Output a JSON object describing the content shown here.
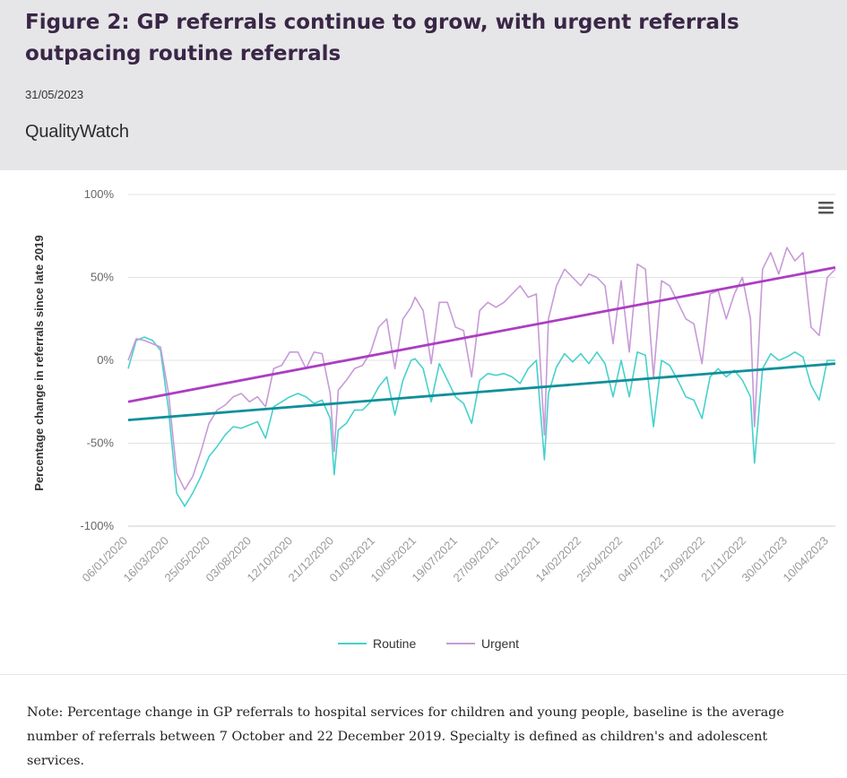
{
  "header": {
    "title": "Figure 2: GP referrals continue to grow, with urgent referrals outpacing routine referrals",
    "date": "31/05/2023",
    "brand": "QualityWatch"
  },
  "menu_icon": "hamburger-menu-icon",
  "colors": {
    "routine": "#47d1cc",
    "urgent": "#c79ad7",
    "routine_trend": "#0f8f9a",
    "urgent_trend": "#ab3ec2",
    "header_bg": "#e6e6e8"
  },
  "chart_data": {
    "type": "line",
    "ylabel": "Percentage change in referrals since late 2019",
    "ylim": [
      -100,
      100
    ],
    "yticks": [
      100,
      50,
      0,
      -50,
      -100
    ],
    "ytick_labels": [
      "100%",
      "50%",
      "0%",
      "-50%",
      "-100%"
    ],
    "x_tick_labels": [
      "06/01/2020",
      "16/03/2020",
      "25/05/2020",
      "03/08/2020",
      "12/10/2020",
      "21/12/2020",
      "01/03/2021",
      "10/05/2021",
      "19/07/2021",
      "27/09/2021",
      "06/12/2021",
      "14/02/2022",
      "25/04/2022",
      "04/07/2022",
      "12/09/2022",
      "21/11/2022",
      "30/01/2023",
      "10/04/2023"
    ],
    "x_start": "2020-01-06",
    "x_end": "2023-05-15",
    "grid": "horizontal",
    "legend_position": "bottom-center",
    "series": [
      {
        "name": "Routine",
        "values": [
          [
            "2020-01-06",
            -5
          ],
          [
            "2020-01-20",
            12
          ],
          [
            "2020-02-03",
            14
          ],
          [
            "2020-02-17",
            12
          ],
          [
            "2020-03-02",
            6
          ],
          [
            "2020-03-16",
            -30
          ],
          [
            "2020-03-30",
            -80
          ],
          [
            "2020-04-13",
            -88
          ],
          [
            "2020-04-27",
            -80
          ],
          [
            "2020-05-11",
            -70
          ],
          [
            "2020-05-25",
            -58
          ],
          [
            "2020-06-08",
            -52
          ],
          [
            "2020-06-22",
            -45
          ],
          [
            "2020-07-06",
            -40
          ],
          [
            "2020-07-20",
            -41
          ],
          [
            "2020-08-03",
            -39
          ],
          [
            "2020-08-17",
            -37
          ],
          [
            "2020-08-31",
            -47
          ],
          [
            "2020-09-14",
            -28
          ],
          [
            "2020-09-28",
            -25
          ],
          [
            "2020-10-12",
            -22
          ],
          [
            "2020-10-26",
            -20
          ],
          [
            "2020-11-09",
            -22
          ],
          [
            "2020-11-23",
            -26
          ],
          [
            "2020-12-07",
            -24
          ],
          [
            "2020-12-21",
            -35
          ],
          [
            "2020-12-28",
            -69
          ],
          [
            "2021-01-04",
            -42
          ],
          [
            "2021-01-18",
            -38
          ],
          [
            "2021-02-01",
            -30
          ],
          [
            "2021-02-15",
            -30
          ],
          [
            "2021-03-01",
            -25
          ],
          [
            "2021-03-15",
            -16
          ],
          [
            "2021-03-29",
            -10
          ],
          [
            "2021-04-12",
            -33
          ],
          [
            "2021-04-26",
            -12
          ],
          [
            "2021-05-10",
            0
          ],
          [
            "2021-05-17",
            1
          ],
          [
            "2021-05-31",
            -5
          ],
          [
            "2021-06-14",
            -25
          ],
          [
            "2021-06-28",
            -2
          ],
          [
            "2021-07-12",
            -12
          ],
          [
            "2021-07-26",
            -22
          ],
          [
            "2021-08-09",
            -26
          ],
          [
            "2021-08-23",
            -38
          ],
          [
            "2021-09-06",
            -12
          ],
          [
            "2021-09-20",
            -8
          ],
          [
            "2021-10-04",
            -9
          ],
          [
            "2021-10-18",
            -8
          ],
          [
            "2021-11-01",
            -10
          ],
          [
            "2021-11-15",
            -14
          ],
          [
            "2021-11-29",
            -5
          ],
          [
            "2021-12-13",
            0
          ],
          [
            "2021-12-27",
            -60
          ],
          [
            "2022-01-03",
            -20
          ],
          [
            "2022-01-17",
            -4
          ],
          [
            "2022-01-31",
            4
          ],
          [
            "2022-02-14",
            -1
          ],
          [
            "2022-02-28",
            4
          ],
          [
            "2022-03-14",
            -2
          ],
          [
            "2022-03-28",
            5
          ],
          [
            "2022-04-11",
            -2
          ],
          [
            "2022-04-25",
            -22
          ],
          [
            "2022-05-09",
            0
          ],
          [
            "2022-05-23",
            -22
          ],
          [
            "2022-06-06",
            5
          ],
          [
            "2022-06-20",
            3
          ],
          [
            "2022-07-04",
            -40
          ],
          [
            "2022-07-18",
            0
          ],
          [
            "2022-08-01",
            -3
          ],
          [
            "2022-08-15",
            -12
          ],
          [
            "2022-08-29",
            -22
          ],
          [
            "2022-09-12",
            -24
          ],
          [
            "2022-09-26",
            -35
          ],
          [
            "2022-10-10",
            -10
          ],
          [
            "2022-10-24",
            -5
          ],
          [
            "2022-11-07",
            -10
          ],
          [
            "2022-11-21",
            -6
          ],
          [
            "2022-12-05",
            -12
          ],
          [
            "2022-12-19",
            -22
          ],
          [
            "2022-12-26",
            -62
          ],
          [
            "2023-01-09",
            -5
          ],
          [
            "2023-01-23",
            4
          ],
          [
            "2023-02-06",
            0
          ],
          [
            "2023-02-20",
            2
          ],
          [
            "2023-03-06",
            5
          ],
          [
            "2023-03-20",
            2
          ],
          [
            "2023-04-03",
            -15
          ],
          [
            "2023-04-17",
            -24
          ],
          [
            "2023-05-01",
            0
          ],
          [
            "2023-05-15",
            0
          ]
        ]
      },
      {
        "name": "Urgent",
        "values": [
          [
            "2020-01-06",
            0
          ],
          [
            "2020-01-20",
            13
          ],
          [
            "2020-02-03",
            12
          ],
          [
            "2020-02-17",
            10
          ],
          [
            "2020-03-02",
            8
          ],
          [
            "2020-03-16",
            -20
          ],
          [
            "2020-03-30",
            -68
          ],
          [
            "2020-04-13",
            -78
          ],
          [
            "2020-04-27",
            -70
          ],
          [
            "2020-05-11",
            -55
          ],
          [
            "2020-05-25",
            -38
          ],
          [
            "2020-06-08",
            -30
          ],
          [
            "2020-06-22",
            -27
          ],
          [
            "2020-07-06",
            -22
          ],
          [
            "2020-07-20",
            -20
          ],
          [
            "2020-08-03",
            -25
          ],
          [
            "2020-08-17",
            -22
          ],
          [
            "2020-08-31",
            -28
          ],
          [
            "2020-09-14",
            -5
          ],
          [
            "2020-09-28",
            -3
          ],
          [
            "2020-10-12",
            5
          ],
          [
            "2020-10-26",
            5
          ],
          [
            "2020-11-09",
            -5
          ],
          [
            "2020-11-23",
            5
          ],
          [
            "2020-12-07",
            4
          ],
          [
            "2020-12-21",
            -20
          ],
          [
            "2020-12-28",
            -55
          ],
          [
            "2021-01-04",
            -18
          ],
          [
            "2021-01-18",
            -12
          ],
          [
            "2021-02-01",
            -5
          ],
          [
            "2021-02-15",
            -3
          ],
          [
            "2021-03-01",
            5
          ],
          [
            "2021-03-15",
            20
          ],
          [
            "2021-03-29",
            25
          ],
          [
            "2021-04-12",
            -5
          ],
          [
            "2021-04-26",
            25
          ],
          [
            "2021-05-10",
            32
          ],
          [
            "2021-05-17",
            38
          ],
          [
            "2021-05-31",
            30
          ],
          [
            "2021-06-14",
            -2
          ],
          [
            "2021-06-28",
            35
          ],
          [
            "2021-07-12",
            35
          ],
          [
            "2021-07-26",
            20
          ],
          [
            "2021-08-09",
            18
          ],
          [
            "2021-08-23",
            -10
          ],
          [
            "2021-09-06",
            30
          ],
          [
            "2021-09-20",
            35
          ],
          [
            "2021-10-04",
            32
          ],
          [
            "2021-10-18",
            35
          ],
          [
            "2021-11-01",
            40
          ],
          [
            "2021-11-15",
            45
          ],
          [
            "2021-11-29",
            38
          ],
          [
            "2021-12-13",
            40
          ],
          [
            "2021-12-27",
            -45
          ],
          [
            "2022-01-03",
            25
          ],
          [
            "2022-01-17",
            45
          ],
          [
            "2022-01-31",
            55
          ],
          [
            "2022-02-14",
            50
          ],
          [
            "2022-02-28",
            45
          ],
          [
            "2022-03-14",
            52
          ],
          [
            "2022-03-28",
            50
          ],
          [
            "2022-04-11",
            45
          ],
          [
            "2022-04-25",
            10
          ],
          [
            "2022-05-09",
            48
          ],
          [
            "2022-05-23",
            5
          ],
          [
            "2022-06-06",
            58
          ],
          [
            "2022-06-20",
            55
          ],
          [
            "2022-07-04",
            -10
          ],
          [
            "2022-07-18",
            48
          ],
          [
            "2022-08-01",
            45
          ],
          [
            "2022-08-15",
            35
          ],
          [
            "2022-08-29",
            25
          ],
          [
            "2022-09-12",
            22
          ],
          [
            "2022-09-26",
            -2
          ],
          [
            "2022-10-10",
            40
          ],
          [
            "2022-10-24",
            42
          ],
          [
            "2022-11-07",
            25
          ],
          [
            "2022-11-21",
            40
          ],
          [
            "2022-12-05",
            50
          ],
          [
            "2022-12-19",
            25
          ],
          [
            "2022-12-26",
            -40
          ],
          [
            "2023-01-09",
            55
          ],
          [
            "2023-01-23",
            65
          ],
          [
            "2023-02-06",
            52
          ],
          [
            "2023-02-20",
            68
          ],
          [
            "2023-03-06",
            60
          ],
          [
            "2023-03-20",
            65
          ],
          [
            "2023-04-03",
            20
          ],
          [
            "2023-04-17",
            15
          ],
          [
            "2023-05-01",
            50
          ],
          [
            "2023-05-15",
            55
          ]
        ]
      }
    ],
    "trendlines": [
      {
        "series": "Routine",
        "start": [
          "2020-01-06",
          -36
        ],
        "end": [
          "2023-05-15",
          -2
        ]
      },
      {
        "series": "Urgent",
        "start": [
          "2020-01-06",
          -25
        ],
        "end": [
          "2023-05-15",
          56
        ]
      }
    ]
  },
  "note": "Note: Percentage change in GP referrals to hospital services for children and young people, baseline is the average number of referrals between 7 October and 22 December 2019. Specialty is defined as children's and adolescent services."
}
